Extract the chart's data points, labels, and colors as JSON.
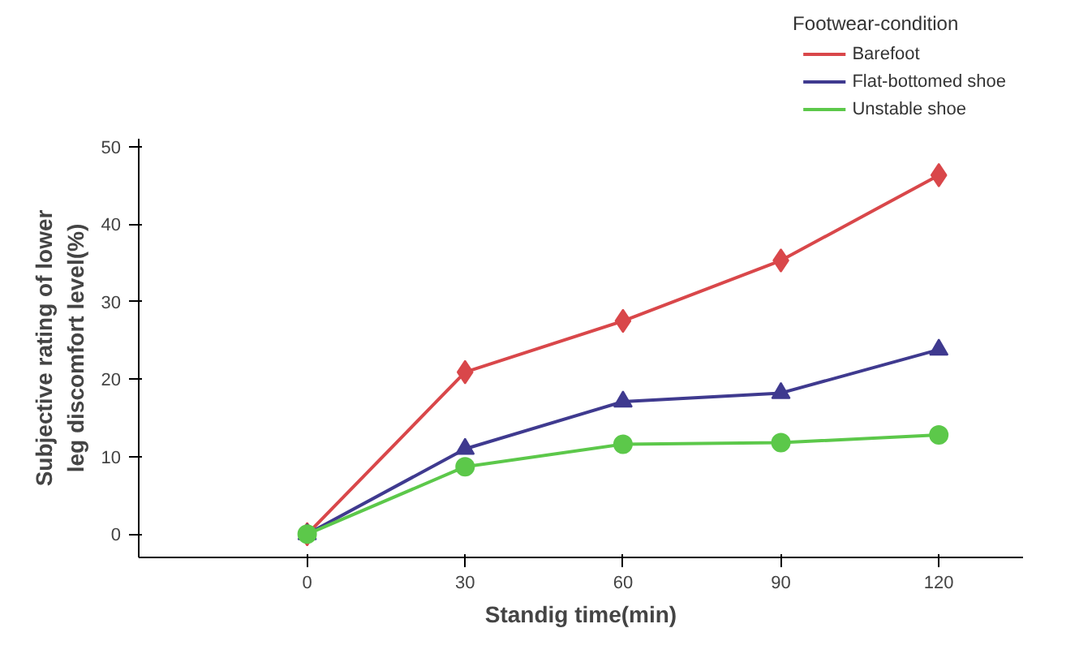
{
  "chart_data": {
    "type": "line",
    "xlabel": "Standig time(min)",
    "ylabel": "Subjective rating of lower leg discomfort level(%)",
    "legend_title": "Footwear-condition",
    "x": [
      0,
      30,
      60,
      90,
      120
    ],
    "series": [
      {
        "name": "Barefoot",
        "color": "#d9474a",
        "marker": "diamond",
        "values": [
          0,
          20.9,
          27.5,
          35.3,
          46.3
        ]
      },
      {
        "name": "Flat-bottomed shoe",
        "color": "#3f3a8f",
        "marker": "triangle",
        "values": [
          0,
          11,
          17.1,
          18.2,
          23.8
        ]
      },
      {
        "name": "Unstable shoe",
        "color": "#5cc84a",
        "marker": "circle",
        "values": [
          0,
          8.7,
          11.6,
          11.8,
          12.8
        ]
      }
    ],
    "xlim": [
      -32,
      136
    ],
    "ylim": [
      -3,
      51
    ],
    "xticks": [
      0,
      30,
      60,
      90,
      120
    ],
    "yticks": [
      0,
      10,
      20,
      30,
      40,
      50
    ],
    "grid": false,
    "legend": "top right",
    "line_style": "solid"
  }
}
